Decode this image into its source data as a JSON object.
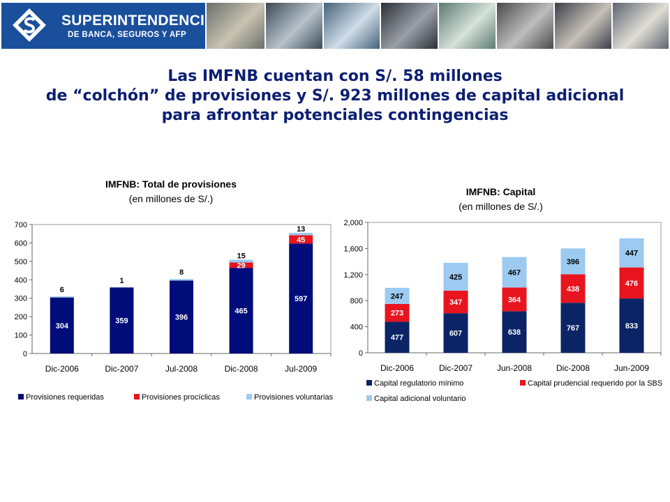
{
  "header": {
    "logo_line1": "SUPERINTENDENCIA",
    "logo_line2": "DE BANCA, SEGUROS Y AFP",
    "photos": [
      "credit-card-photo",
      "building-photo",
      "keyboard-photo",
      "laptop-photo",
      "banknotes-photo",
      "card-terminal-photo",
      "handshake-photo",
      "meeting-photo",
      "signing-photo"
    ]
  },
  "headline": {
    "line1": "Las IMFNB cuentan con S/. 58 millones",
    "line2": "de “colchón” de provisiones y S/. 923 millones de capital adicional",
    "line3": "para afrontar potenciales contingencias"
  },
  "colors": {
    "navy": "#000c7a",
    "navy_dark": "#0b2466",
    "red": "#e8141e",
    "light_blue": "#9ccaf0",
    "headline": "#0c1f72"
  },
  "chart_data": [
    {
      "type": "bar",
      "stacked": true,
      "title": "IMFNB: Total de provisiones",
      "subtitle": "(en millones de S/.)",
      "categories": [
        "Dic-2006",
        "Dic-2007",
        "Jul-2008",
        "Dic-2008",
        "Jul-2009"
      ],
      "series": [
        {
          "name": "Provisiones requeridas",
          "values": [
            304,
            359,
            396,
            465,
            597
          ],
          "color": "#000c7a"
        },
        {
          "name": "Provisiones procíclicas",
          "values": [
            0,
            0,
            0,
            29,
            45
          ],
          "color": "#e8141e"
        },
        {
          "name": "Provisiones voluntarias",
          "values": [
            6,
            1,
            8,
            15,
            13
          ],
          "color": "#9ccaf0"
        }
      ],
      "data_labels": [
        [
          "304",
          "359",
          "396",
          "465",
          "597"
        ],
        [
          "",
          "",
          "",
          "29",
          "45"
        ],
        [
          "6",
          "1",
          "8",
          "15",
          "13"
        ]
      ],
      "yticks": [
        "0",
        "100",
        "200",
        "300",
        "400",
        "500",
        "600",
        "700"
      ],
      "ylim": [
        0,
        700
      ],
      "legend_position": "bottom"
    },
    {
      "type": "bar",
      "stacked": true,
      "title": "IMFNB: Capital",
      "subtitle": "(en millones de S/.)",
      "categories": [
        "Dic-2006",
        "Dic-2007",
        "Jun-2008",
        "Dic-2008",
        "Jun-2009"
      ],
      "series": [
        {
          "name": "Capital regulatorio mínimo",
          "values": [
            477,
            607,
            638,
            767,
            833
          ],
          "color": "#0b2466"
        },
        {
          "name": "Capital prudencial requerido por la SBS",
          "values": [
            273,
            347,
            364,
            438,
            476
          ],
          "color": "#e8141e"
        },
        {
          "name": "Capital adicional voluntario",
          "values": [
            247,
            425,
            467,
            396,
            447
          ],
          "color": "#9ccaf0"
        }
      ],
      "data_labels": [
        [
          "477",
          "607",
          "638",
          "767",
          "833"
        ],
        [
          "273",
          "347",
          "364",
          "438",
          "476"
        ],
        [
          "247",
          "425",
          "467",
          "396",
          "447"
        ]
      ],
      "yticks": [
        "0",
        "400",
        "800",
        "1,200",
        "1,600",
        "2,000"
      ],
      "ylim": [
        0,
        2000
      ],
      "legend_position": "bottom"
    }
  ]
}
